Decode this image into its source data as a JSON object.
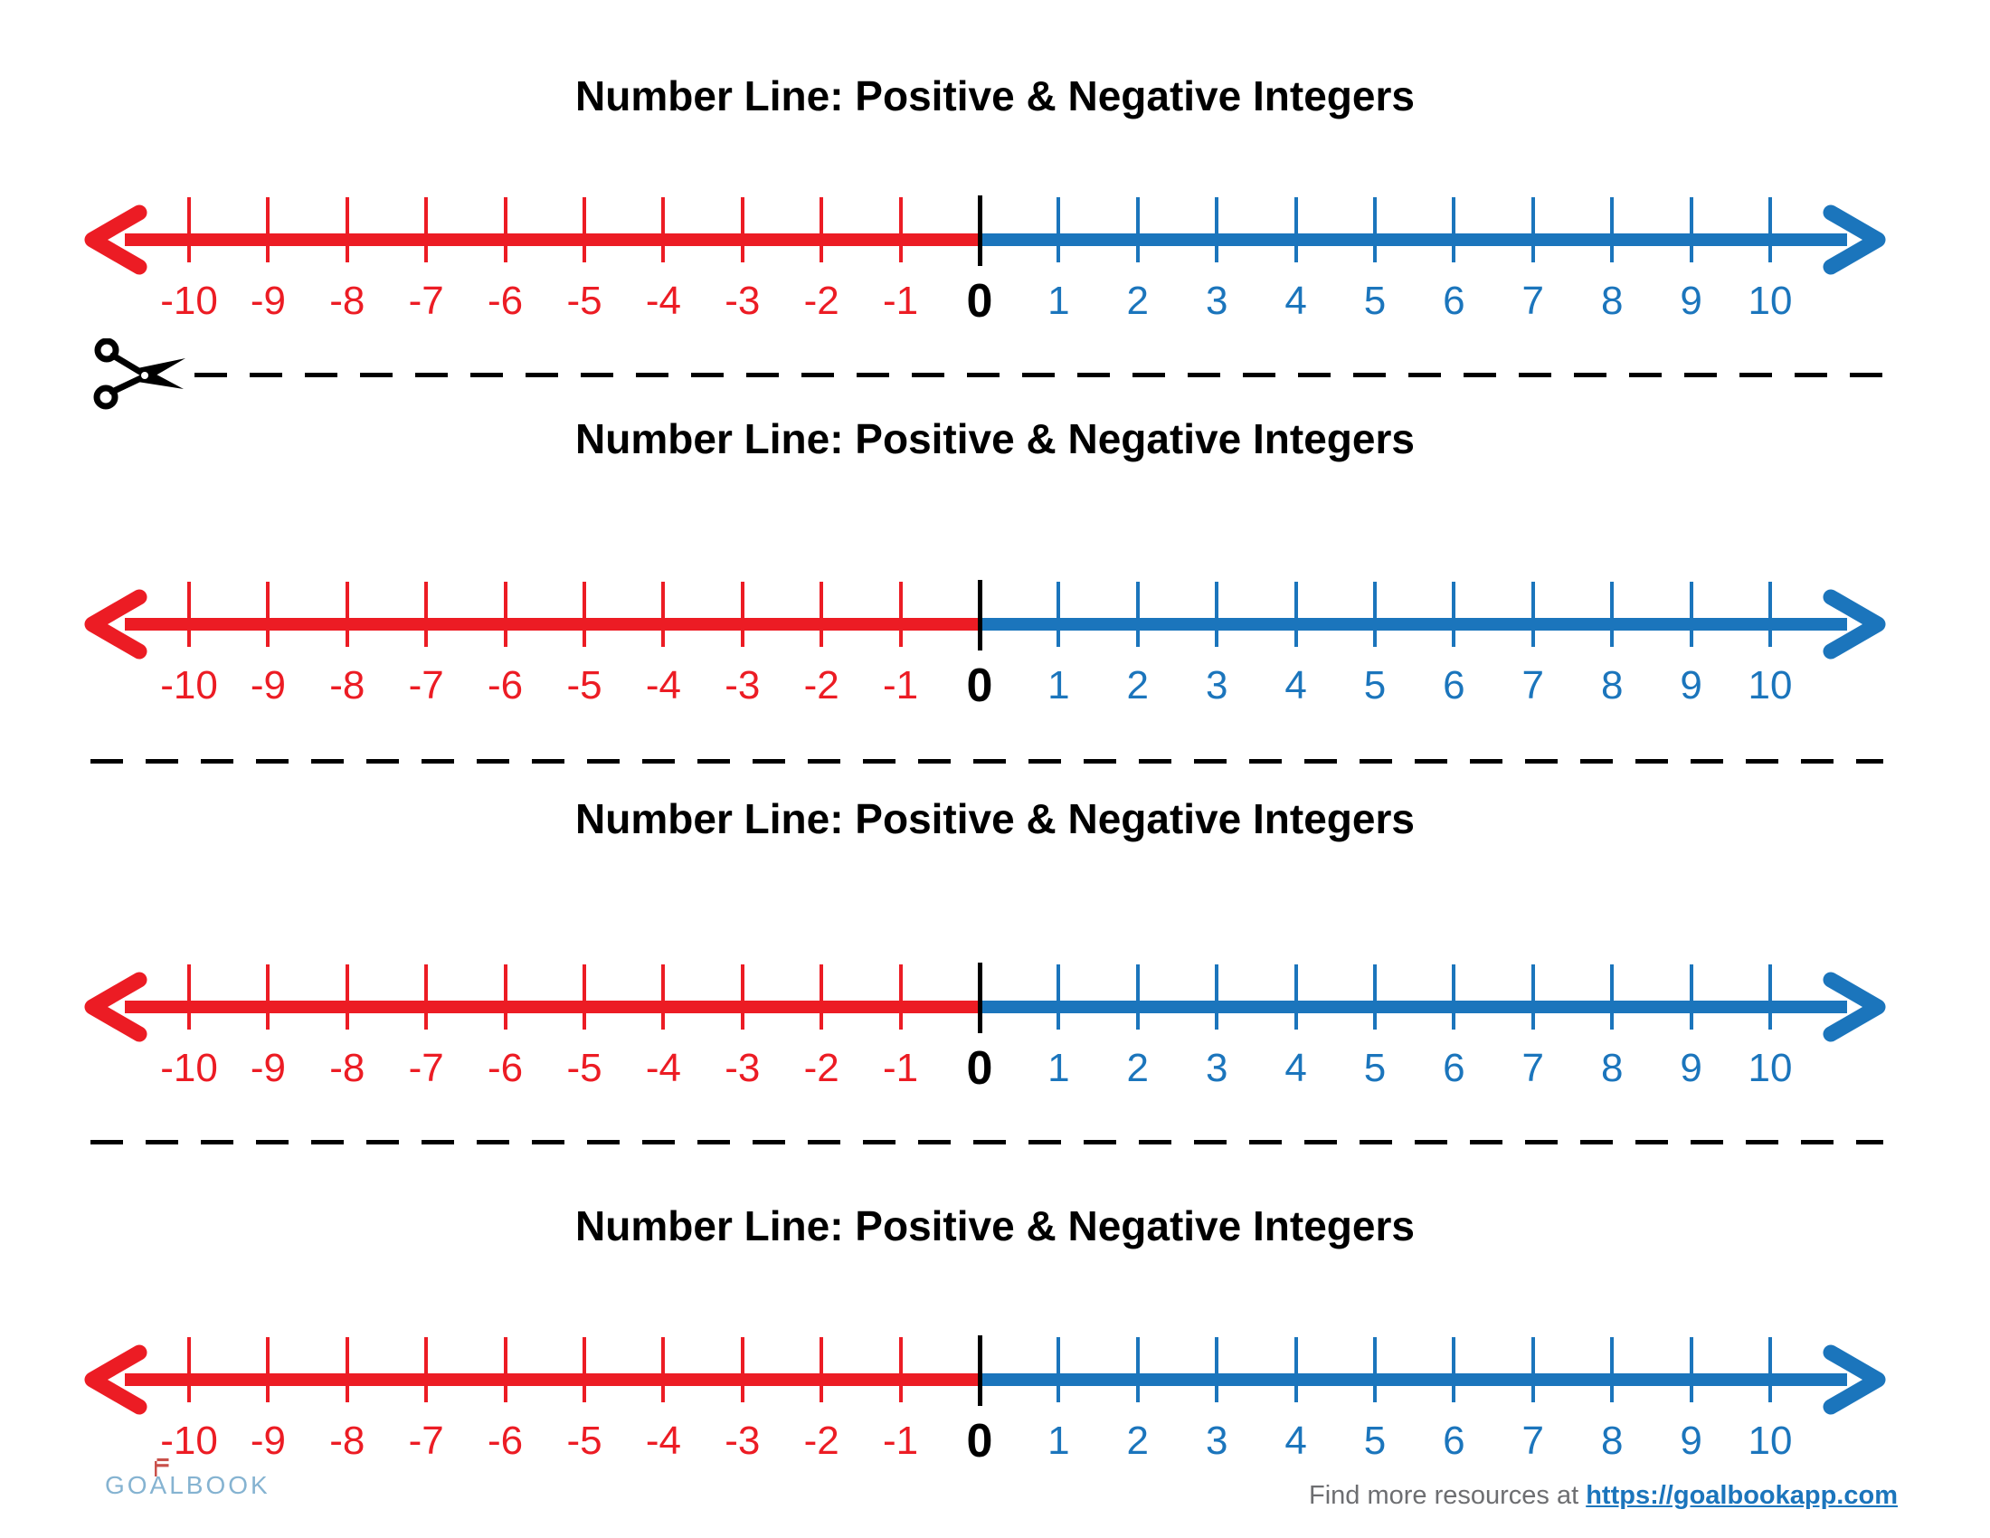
{
  "colors": {
    "negative_red": "#EC1C24",
    "positive_blue": "#1B75BC",
    "zero_black": "#000000",
    "title_black": "#000000",
    "dash_black": "#000000",
    "footer_gray": "#6D6E71",
    "link_blue": "#1B75BC",
    "logo_blue": "#85B3D1",
    "flag_red": "#C9504A"
  },
  "sections": [
    {
      "title": "Number Line: Positive & Negative Integers"
    },
    {
      "title": "Number Line: Positive & Negative Integers"
    },
    {
      "title": "Number Line: Positive & Negative Integers"
    },
    {
      "title": "Number Line: Positive & Negative Integers"
    }
  ],
  "number_line": {
    "min": -10,
    "max": 10,
    "ticks": [
      {
        "v": -10,
        "label": "-10"
      },
      {
        "v": -9,
        "label": "-9"
      },
      {
        "v": -8,
        "label": "-8"
      },
      {
        "v": -7,
        "label": "-7"
      },
      {
        "v": -6,
        "label": "-6"
      },
      {
        "v": -5,
        "label": "-5"
      },
      {
        "v": -4,
        "label": "-4"
      },
      {
        "v": -3,
        "label": "-3"
      },
      {
        "v": -2,
        "label": "-2"
      },
      {
        "v": -1,
        "label": "-1"
      },
      {
        "v": 0,
        "label": "0"
      },
      {
        "v": 1,
        "label": "1"
      },
      {
        "v": 2,
        "label": "2"
      },
      {
        "v": 3,
        "label": "3"
      },
      {
        "v": 4,
        "label": "4"
      },
      {
        "v": 5,
        "label": "5"
      },
      {
        "v": 6,
        "label": "6"
      },
      {
        "v": 7,
        "label": "7"
      },
      {
        "v": 8,
        "label": "8"
      },
      {
        "v": 9,
        "label": "9"
      },
      {
        "v": 10,
        "label": "10"
      }
    ]
  },
  "separators": [
    {
      "has_scissors": true
    },
    {
      "has_scissors": false
    },
    {
      "has_scissors": false
    }
  ],
  "footer": {
    "logo_text": "GOALBOOK",
    "find_text": "Find more resources at",
    "link_text": "https://goalbookapp.com"
  }
}
